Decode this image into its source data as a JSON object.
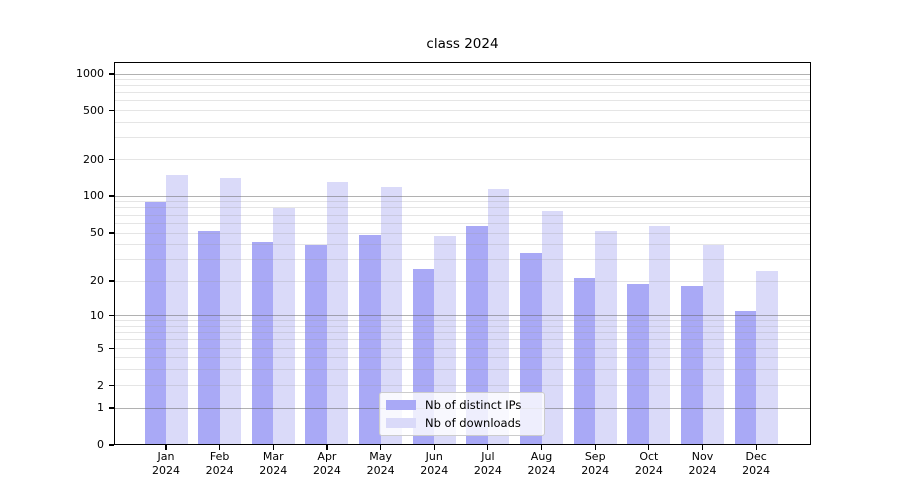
{
  "chart_data": {
    "type": "bar",
    "title": "class 2024",
    "categories": [
      "Jan",
      "Feb",
      "Mar",
      "Apr",
      "May",
      "Jun",
      "Jul",
      "Aug",
      "Sep",
      "Oct",
      "Nov",
      "Dec"
    ],
    "x_year": "2024",
    "series": [
      {
        "name": "Nb of distinct IPs",
        "color": "#a9a9f6",
        "values": [
          90,
          52,
          42,
          40,
          48,
          25,
          57,
          34,
          21,
          19,
          18,
          11
        ]
      },
      {
        "name": "Nb of downloads",
        "color": "#dadaf9",
        "values": [
          150,
          140,
          80,
          130,
          118,
          47,
          115,
          75,
          52,
          57,
          40,
          24
        ]
      }
    ],
    "y_ticks": [
      0,
      1,
      2,
      5,
      10,
      20,
      50,
      100,
      200,
      500,
      1000
    ],
    "y_scale": "log-like",
    "ylim": [
      0,
      1000
    ],
    "grid": "on",
    "legend_position": "lower center"
  }
}
